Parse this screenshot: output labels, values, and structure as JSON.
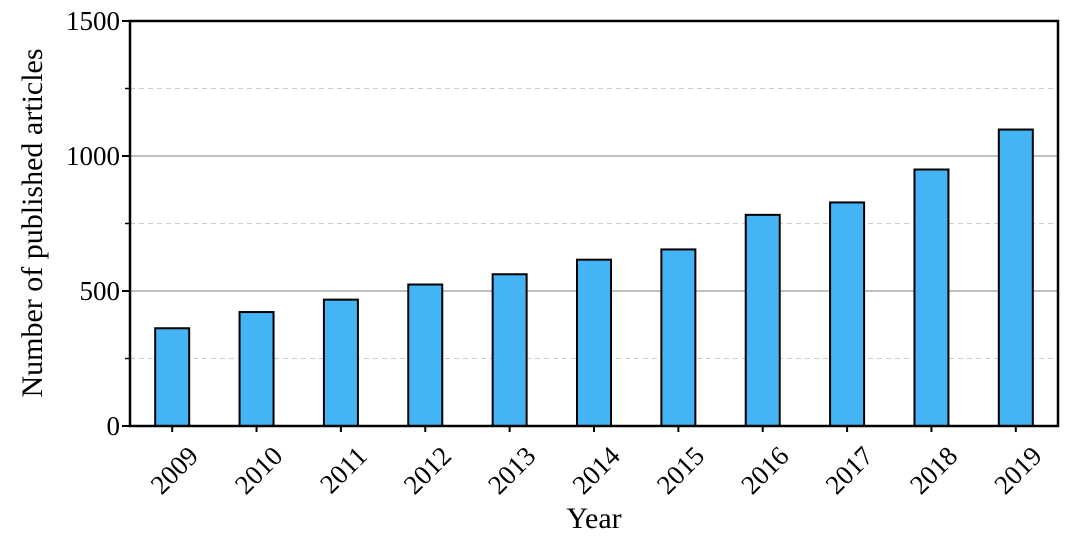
{
  "chart_data": {
    "type": "bar",
    "title": "",
    "xlabel": "Year",
    "ylabel": "Number of published articles",
    "categories": [
      "2009",
      "2010",
      "2011",
      "2012",
      "2013",
      "2014",
      "2015",
      "2016",
      "2017",
      "2018",
      "2019"
    ],
    "values": [
      362,
      422,
      468,
      524,
      562,
      616,
      654,
      782,
      828,
      950,
      1098
    ],
    "ylim": [
      0,
      1500
    ],
    "yticks": [
      0,
      500,
      1000,
      1500
    ],
    "ytick_labels": [
      "0",
      "500",
      "1000",
      "1500"
    ],
    "grid": {
      "major": true,
      "minor": true
    },
    "legend": "none",
    "colors": {
      "bar_fill": "#45b4f5",
      "bar_stroke": "#000000",
      "major_grid": "#999999",
      "minor_grid": "#cccccc",
      "axis": "#000000"
    }
  }
}
